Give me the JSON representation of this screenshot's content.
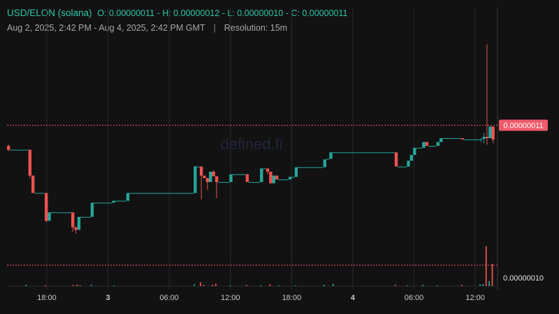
{
  "header": {
    "pair": "USD/ELON (solana)",
    "ohlc": "O: 0.00000011 - H: 0.00000012 - L: 0.00000010 - C: 0.00000011",
    "range": "Aug 2, 2025, 2:42 PM - Aug 4, 2025, 2:42 PM GMT",
    "separator": "|",
    "resolution": "Resolution: 15m"
  },
  "watermark": "defined.fi",
  "colors": {
    "up": "#26a69a",
    "down": "#ef5350",
    "price_label_bg": "#f05b6a",
    "background": "#121212",
    "grid": "#2a2a2a"
  },
  "chart_data": {
    "type": "candlestick",
    "x_tick_labels": [
      "18:00",
      "3",
      "06:00",
      "12:00",
      "18:00",
      "4",
      "06:00",
      "12:00"
    ],
    "x_ticks": [
      {
        "label": "18:00",
        "hour": 3.3,
        "bold": false
      },
      {
        "label": "3",
        "hour": 9.3,
        "bold": true
      },
      {
        "label": "06:00",
        "hour": 15.3,
        "bold": false
      },
      {
        "label": "12:00",
        "hour": 21.3,
        "bold": false
      },
      {
        "label": "18:00",
        "hour": 27.3,
        "bold": false
      },
      {
        "label": "4",
        "hour": 33.3,
        "bold": true
      },
      {
        "label": "06:00",
        "hour": 39.3,
        "bold": false
      },
      {
        "label": "12:00",
        "hour": 45.3,
        "bold": false
      }
    ],
    "price_labels": [
      {
        "label": "0.00000011",
        "value": 1.1e-07,
        "style": "current"
      },
      {
        "label": "0.00000010",
        "value": 1e-07,
        "style": "volume"
      }
    ],
    "y_range": [
      8.67e-08,
      1.24e-07
    ],
    "segments": [
      {
        "x0": -0.6,
        "x1": -0.3,
        "open": 0.1068,
        "close": 0.1062,
        "high": 0.107,
        "low": 0.106
      },
      {
        "x0": -0.3,
        "x1": 1.5,
        "open": 0.1062,
        "close": 0.1062
      },
      {
        "x0": 1.5,
        "x1": 1.8,
        "open": 0.1062,
        "close": 0.1022,
        "high": 0.1062,
        "low": 0.1018
      },
      {
        "x0": 1.8,
        "x1": 2.1,
        "open": 0.1022,
        "close": 0.0995
      },
      {
        "x0": 2.1,
        "x1": 3.1,
        "open": 0.0995,
        "close": 0.0995
      },
      {
        "x0": 3.1,
        "x1": 3.4,
        "open": 0.0995,
        "close": 0.0952,
        "high": 0.0995,
        "low": 0.095
      },
      {
        "x0": 3.4,
        "x1": 3.7,
        "open": 0.0952,
        "close": 0.0965
      },
      {
        "x0": 3.7,
        "x1": 5.7,
        "open": 0.0965,
        "close": 0.0965
      },
      {
        "x0": 5.7,
        "x1": 6.0,
        "open": 0.0965,
        "close": 0.0942,
        "high": 0.0965,
        "low": 0.0935
      },
      {
        "x0": 6.0,
        "x1": 6.3,
        "open": 0.0942,
        "close": 0.0938,
        "high": 0.0942,
        "low": 0.0932
      },
      {
        "x0": 6.3,
        "x1": 6.6,
        "open": 0.0938,
        "close": 0.0958
      },
      {
        "x0": 6.6,
        "x1": 7.6,
        "open": 0.0958,
        "close": 0.0958
      },
      {
        "x0": 7.6,
        "x1": 7.9,
        "open": 0.0958,
        "close": 0.098
      },
      {
        "x0": 7.9,
        "x1": 9.7,
        "open": 0.098,
        "close": 0.098
      },
      {
        "x0": 9.7,
        "x1": 10.0,
        "open": 0.098,
        "close": 0.0983
      },
      {
        "x0": 10.0,
        "x1": 11.1,
        "open": 0.0983,
        "close": 0.0983
      },
      {
        "x0": 11.1,
        "x1": 11.4,
        "open": 0.0983,
        "close": 0.0995
      },
      {
        "x0": 11.4,
        "x1": 17.7,
        "open": 0.0995,
        "close": 0.0995
      },
      {
        "x0": 17.7,
        "x1": 18.0,
        "open": 0.0995,
        "close": 0.1036,
        "high": 0.1037,
        "low": 0.0995
      },
      {
        "x0": 18.0,
        "x1": 18.3,
        "open": 0.1036,
        "close": 0.1036
      },
      {
        "x0": 18.3,
        "x1": 18.6,
        "open": 0.1036,
        "close": 0.1022,
        "high": 0.1036,
        "low": 0.0985
      },
      {
        "x0": 18.6,
        "x1": 18.9,
        "open": 0.1022,
        "close": 0.1018
      },
      {
        "x0": 18.9,
        "x1": 19.2,
        "open": 0.1018,
        "close": 0.1012,
        "high": 0.1018,
        "low": 0.1
      },
      {
        "x0": 19.2,
        "x1": 19.5,
        "open": 0.1012,
        "close": 0.1028
      },
      {
        "x0": 19.5,
        "x1": 19.8,
        "open": 0.1028,
        "close": 0.1021,
        "high": 0.103,
        "low": 0.1021
      },
      {
        "x0": 19.8,
        "x1": 20.1,
        "open": 0.1021,
        "close": 0.1012,
        "high": 0.1021,
        "low": 0.0987
      },
      {
        "x0": 20.1,
        "x1": 21.2,
        "open": 0.1012,
        "close": 0.1012
      },
      {
        "x0": 21.2,
        "x1": 21.5,
        "open": 0.1012,
        "close": 0.1024
      },
      {
        "x0": 21.5,
        "x1": 22.8,
        "open": 0.1024,
        "close": 0.1024
      },
      {
        "x0": 22.8,
        "x1": 23.1,
        "open": 0.1024,
        "close": 0.1012
      },
      {
        "x0": 23.1,
        "x1": 24.2,
        "open": 0.1012,
        "close": 0.1012
      },
      {
        "x0": 24.2,
        "x1": 24.5,
        "open": 0.1012,
        "close": 0.1033
      },
      {
        "x0": 24.5,
        "x1": 24.8,
        "open": 0.1033,
        "close": 0.1033
      },
      {
        "x0": 24.8,
        "x1": 25.1,
        "open": 0.1033,
        "close": 0.1028,
        "high": 0.1033,
        "low": 0.1024
      },
      {
        "x0": 25.1,
        "x1": 25.4,
        "open": 0.1028,
        "close": 0.101
      },
      {
        "x0": 25.4,
        "x1": 25.7,
        "open": 0.101,
        "close": 0.1022
      },
      {
        "x0": 25.7,
        "x1": 26.0,
        "open": 0.1022,
        "close": 0.1016
      },
      {
        "x0": 26.0,
        "x1": 27.0,
        "open": 0.1016,
        "close": 0.1016
      },
      {
        "x0": 27.0,
        "x1": 27.3,
        "open": 0.1016,
        "close": 0.102
      },
      {
        "x0": 27.3,
        "x1": 27.6,
        "open": 0.102,
        "close": 0.102
      },
      {
        "x0": 27.6,
        "x1": 27.9,
        "open": 0.102,
        "close": 0.1035
      },
      {
        "x0": 27.9,
        "x1": 30.4,
        "open": 0.1035,
        "close": 0.1035
      },
      {
        "x0": 30.4,
        "x1": 30.7,
        "open": 0.1035,
        "close": 0.1047
      },
      {
        "x0": 30.7,
        "x1": 31.0,
        "open": 0.1047,
        "close": 0.1048
      },
      {
        "x0": 31.0,
        "x1": 31.3,
        "open": 0.1048,
        "close": 0.1058
      },
      {
        "x0": 31.3,
        "x1": 37.4,
        "open": 0.1058,
        "close": 0.1058
      },
      {
        "x0": 37.4,
        "x1": 37.7,
        "open": 0.1058,
        "close": 0.1036
      },
      {
        "x0": 37.7,
        "x1": 38.6,
        "open": 0.1036,
        "close": 0.1036
      },
      {
        "x0": 38.6,
        "x1": 38.9,
        "open": 0.1036,
        "close": 0.1045
      },
      {
        "x0": 38.9,
        "x1": 39.2,
        "open": 0.1045,
        "close": 0.1054
      },
      {
        "x0": 39.2,
        "x1": 39.5,
        "open": 0.1054,
        "close": 0.1065
      },
      {
        "x0": 39.5,
        "x1": 40.1,
        "open": 0.1065,
        "close": 0.1065
      },
      {
        "x0": 40.1,
        "x1": 40.4,
        "open": 0.1065,
        "close": 0.1074
      },
      {
        "x0": 40.4,
        "x1": 40.7,
        "open": 0.1074,
        "close": 0.1068
      },
      {
        "x0": 40.7,
        "x1": 41.5,
        "open": 0.1068,
        "close": 0.1068
      },
      {
        "x0": 41.5,
        "x1": 41.8,
        "open": 0.1068,
        "close": 0.1074
      },
      {
        "x0": 41.8,
        "x1": 42.1,
        "open": 0.1074,
        "close": 0.108
      },
      {
        "x0": 42.1,
        "x1": 43.9,
        "open": 0.108,
        "close": 0.108
      },
      {
        "x0": 43.9,
        "x1": 44.2,
        "open": 0.108,
        "close": 0.1078
      },
      {
        "x0": 44.2,
        "x1": 45.7,
        "open": 0.1078,
        "close": 0.1078
      },
      {
        "x0": 45.7,
        "x1": 46.0,
        "open": 0.1078,
        "close": 0.1079,
        "high": 0.1079,
        "low": 0.1074
      },
      {
        "x0": 46.0,
        "x1": 46.3,
        "open": 0.1079,
        "close": 0.1082,
        "high": 0.1088,
        "low": 0.1072
      },
      {
        "x0": 46.3,
        "x1": 46.6,
        "open": 0.1082,
        "close": 0.108,
        "high": 0.1225,
        "low": 0.107
      },
      {
        "x0": 46.6,
        "x1": 46.9,
        "open": 0.108,
        "close": 0.1098
      },
      {
        "x0": 46.9,
        "x1": 47.2,
        "open": 0.1098,
        "close": 0.1078,
        "high": 0.1098,
        "low": 0.1072
      }
    ],
    "volume_bars": [
      {
        "x": 1.2,
        "h": 0.3
      },
      {
        "x": 3.1,
        "h": 0.2
      },
      {
        "x": 5.8,
        "h": 0.3
      },
      {
        "x": 6.2,
        "h": 0.4
      },
      {
        "x": 6.5,
        "h": 0.2
      },
      {
        "x": 7.6,
        "h": 0.3
      },
      {
        "x": 9.8,
        "h": 0.2
      },
      {
        "x": 17.7,
        "h": 0.4
      },
      {
        "x": 18.3,
        "h": 0.9
      },
      {
        "x": 18.6,
        "h": 0.3
      },
      {
        "x": 19.5,
        "h": 0.3
      },
      {
        "x": 19.8,
        "h": 0.6
      },
      {
        "x": 21.2,
        "h": 0.2
      },
      {
        "x": 22.8,
        "h": 0.3
      },
      {
        "x": 24.2,
        "h": 0.2
      },
      {
        "x": 25.1,
        "h": 0.4
      },
      {
        "x": 26.0,
        "h": 0.2
      },
      {
        "x": 27.6,
        "h": 0.2
      },
      {
        "x": 30.4,
        "h": 0.3
      },
      {
        "x": 31.3,
        "h": 0.5
      },
      {
        "x": 37.4,
        "h": 0.3
      },
      {
        "x": 38.6,
        "h": 0.2
      },
      {
        "x": 40.1,
        "h": 0.3
      },
      {
        "x": 41.5,
        "h": 0.2
      },
      {
        "x": 43.9,
        "h": 0.3
      },
      {
        "x": 45.7,
        "h": 0.4
      },
      {
        "x": 46.0,
        "h": 0.5
      },
      {
        "x": 46.3,
        "h": 9.5
      },
      {
        "x": 46.6,
        "h": 1.2
      },
      {
        "x": 46.9,
        "h": 5.3
      }
    ]
  }
}
